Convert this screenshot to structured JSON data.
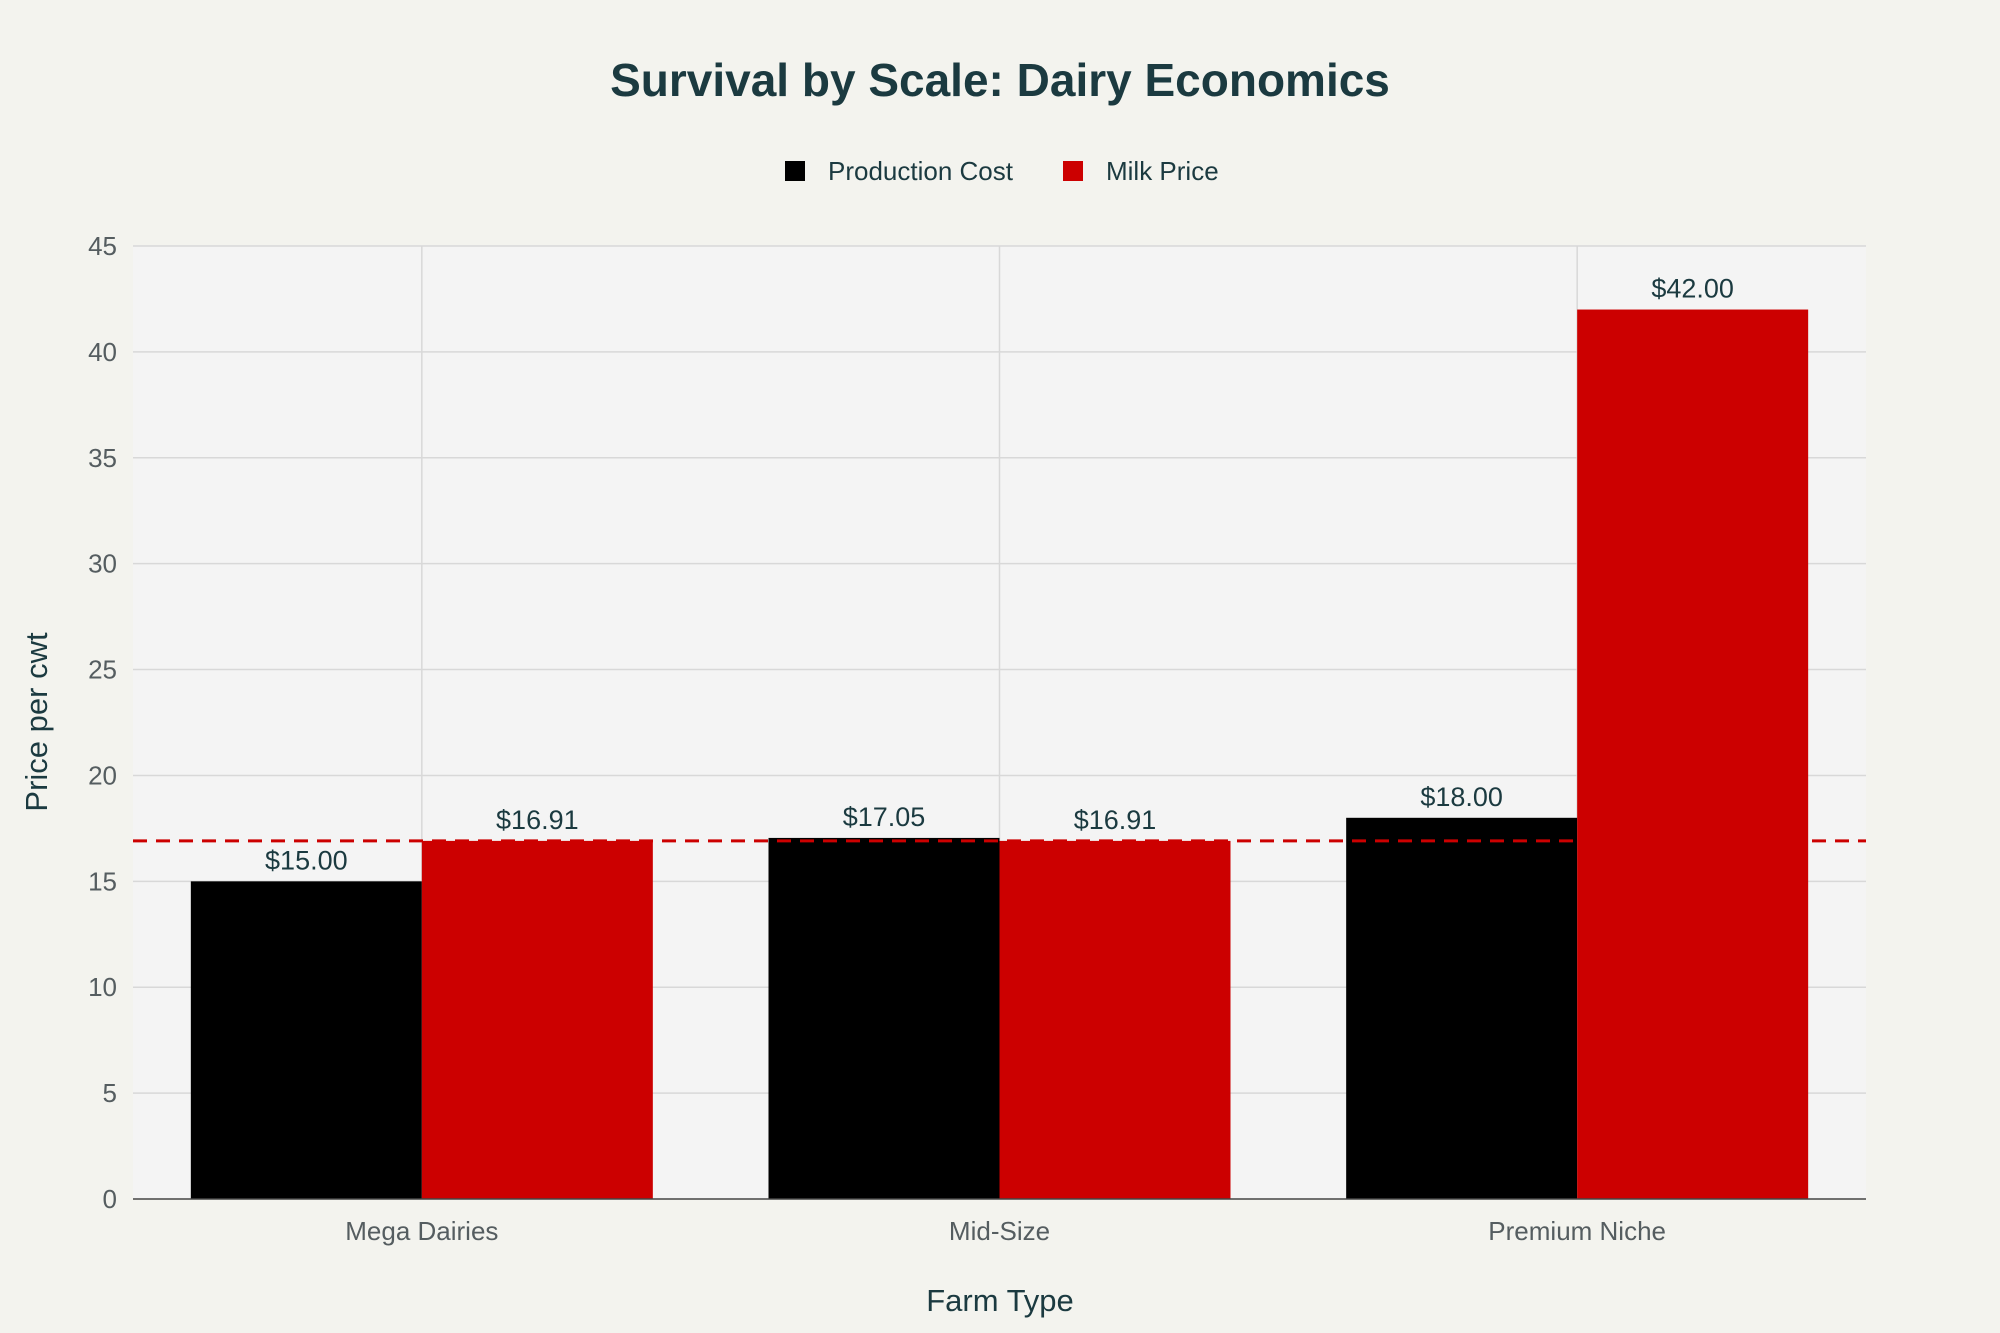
{
  "chart_data": {
    "type": "bar",
    "title": "Survival by Scale: Dairy Economics",
    "xlabel": "Farm Type",
    "ylabel": "Price per cwt",
    "categories": [
      "Mega Dairies",
      "Mid-Size",
      "Premium Niche"
    ],
    "series": [
      {
        "name": "Production Cost",
        "color": "#000000",
        "values": [
          15.0,
          17.05,
          18.0
        ],
        "labels": [
          "$15.00",
          "$17.05",
          "$18.00"
        ]
      },
      {
        "name": "Milk Price",
        "color": "#cc0000",
        "values": [
          16.91,
          16.91,
          42.0
        ],
        "labels": [
          "$16.91",
          "$16.91",
          "$42.00"
        ]
      }
    ],
    "reference_line": {
      "value": 16.91,
      "color": "#cc0000",
      "style": "dashed"
    },
    "ylim": [
      0,
      45
    ],
    "yticks": [
      0,
      5,
      10,
      15,
      20,
      25,
      30,
      35,
      40,
      45
    ],
    "grid": true,
    "legend_position": "top-center"
  }
}
